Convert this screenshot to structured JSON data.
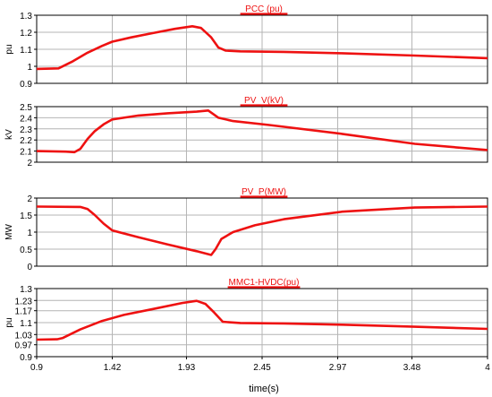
{
  "colors": {
    "trace": "#ee1111",
    "grid": "#b4b4b4",
    "frame": "#000000",
    "background": "#ffffff"
  },
  "shared_x": {
    "label": "time(s)",
    "range": [
      0.9,
      4.0
    ],
    "ticks": [
      0.9,
      1.42,
      1.93,
      2.45,
      2.97,
      3.48,
      4.0
    ],
    "tick_labels": [
      "0.9",
      "1.42",
      "1.93",
      "2.45",
      "2.97",
      "3.48",
      "4"
    ]
  },
  "chart_data": [
    {
      "type": "line",
      "title": "PCC (pu)",
      "ylabel": "pu",
      "ylim": [
        0.9,
        1.3
      ],
      "yticks": [
        0.9,
        1.0,
        1.1,
        1.2,
        1.3
      ],
      "ytick_labels": [
        "0.9",
        "1",
        "1.1",
        "1.2",
        "1.3"
      ],
      "grid": true,
      "series": [
        {
          "x": [
            0.9,
            1.05,
            1.15,
            1.25,
            1.35,
            1.42,
            1.55,
            1.7,
            1.85,
            1.97,
            2.03,
            2.1,
            2.15,
            2.2,
            2.3,
            2.6,
            3.0,
            3.5,
            4.0
          ],
          "y": [
            0.985,
            0.988,
            1.03,
            1.08,
            1.12,
            1.145,
            1.17,
            1.195,
            1.22,
            1.235,
            1.225,
            1.17,
            1.11,
            1.092,
            1.088,
            1.085,
            1.077,
            1.063,
            1.048
          ]
        }
      ]
    },
    {
      "type": "line",
      "title": "PV_V(kV)",
      "ylabel": "kV",
      "ylim": [
        2.0,
        2.5
      ],
      "yticks": [
        2.0,
        2.1,
        2.2,
        2.3,
        2.4,
        2.5
      ],
      "ytick_labels": [
        "2",
        "2.1",
        "2.2",
        "2.3",
        "2.4",
        "2.5"
      ],
      "grid": true,
      "series": [
        {
          "x": [
            0.9,
            1.1,
            1.16,
            1.2,
            1.25,
            1.3,
            1.36,
            1.42,
            1.6,
            1.8,
            2.0,
            2.08,
            2.15,
            2.25,
            2.5,
            3.0,
            3.5,
            4.0
          ],
          "y": [
            2.1,
            2.095,
            2.09,
            2.12,
            2.21,
            2.28,
            2.34,
            2.385,
            2.42,
            2.44,
            2.455,
            2.465,
            2.4,
            2.37,
            2.335,
            2.255,
            2.165,
            2.11
          ]
        }
      ]
    },
    {
      "type": "line",
      "title": "PV_P(MW)",
      "ylabel": "MW",
      "ylim": [
        0,
        2
      ],
      "yticks": [
        0,
        0.5,
        1.0,
        1.5,
        2.0
      ],
      "ytick_labels": [
        "0",
        "0.5",
        "1",
        "1.5",
        "2"
      ],
      "grid": true,
      "series": [
        {
          "x": [
            0.9,
            1.2,
            1.25,
            1.3,
            1.36,
            1.42,
            1.6,
            1.8,
            2.0,
            2.1,
            2.13,
            2.17,
            2.25,
            2.4,
            2.6,
            3.0,
            3.5,
            4.0
          ],
          "y": [
            1.75,
            1.74,
            1.68,
            1.5,
            1.25,
            1.05,
            0.85,
            0.64,
            0.44,
            0.33,
            0.5,
            0.8,
            1.0,
            1.2,
            1.38,
            1.6,
            1.72,
            1.75
          ]
        }
      ]
    },
    {
      "type": "line",
      "title": "MMC1-HVDC(pu)",
      "ylabel": "pu",
      "ylim": [
        0.9,
        1.3
      ],
      "yticks": [
        0.9,
        0.97,
        1.03,
        1.1,
        1.17,
        1.23,
        1.3
      ],
      "ytick_labels": [
        "0.9",
        "0.97",
        "1.03",
        "1.1",
        "1.17",
        "1.23",
        "1.3"
      ],
      "grid": true,
      "series": [
        {
          "x": [
            0.9,
            1.04,
            1.08,
            1.2,
            1.35,
            1.5,
            1.7,
            1.9,
            2.0,
            2.06,
            2.12,
            2.18,
            2.3,
            2.6,
            3.0,
            3.5,
            4.0
          ],
          "y": [
            1.0,
            1.002,
            1.01,
            1.06,
            1.11,
            1.145,
            1.18,
            1.215,
            1.228,
            1.21,
            1.16,
            1.105,
            1.098,
            1.095,
            1.088,
            1.076,
            1.063
          ]
        }
      ]
    }
  ]
}
